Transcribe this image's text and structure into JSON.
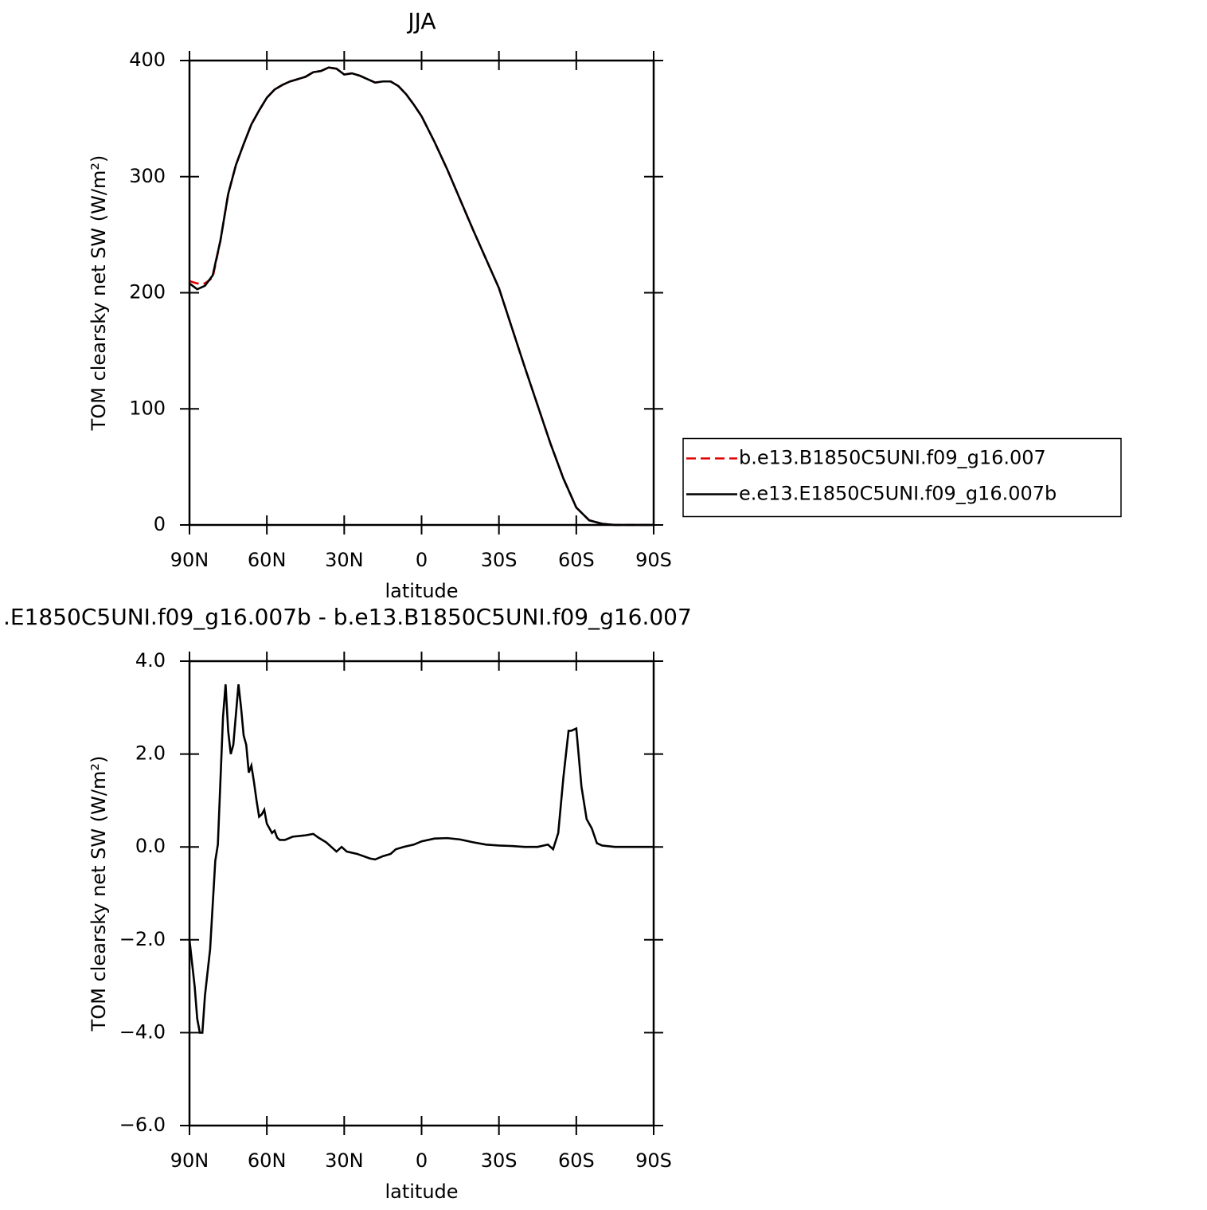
{
  "chart_data": [
    {
      "type": "line",
      "title": "JJA",
      "xlabel": "latitude",
      "ylabel": "TOM clearsky net SW (W/m²)",
      "x": [
        90,
        87,
        84,
        81,
        78,
        75,
        72,
        69,
        66,
        63,
        60,
        57,
        54,
        51,
        48,
        45,
        42,
        39,
        36,
        33,
        30,
        27,
        24,
        21,
        18,
        15,
        12,
        9,
        6,
        3,
        0,
        -5,
        -10,
        -15,
        -20,
        -25,
        -30,
        -35,
        -40,
        -45,
        -50,
        -55,
        -60,
        -65,
        -70,
        -75,
        -80,
        -85,
        -90
      ],
      "series": [
        {
          "name": "b.e13.B1850C5UNI.f09_g16.007",
          "color": "#e00000",
          "linestyle": "dashed",
          "values": [
            210,
            208,
            208,
            213,
            245,
            285,
            310,
            328,
            345,
            357,
            368,
            375,
            379,
            382,
            384,
            386,
            390,
            391,
            394,
            393,
            388,
            389,
            387,
            384,
            381,
            382,
            382,
            378,
            371,
            362,
            352,
            330,
            306,
            280,
            254,
            229,
            204,
            170,
            136,
            103,
            70,
            40,
            15,
            4,
            1,
            0,
            0,
            0,
            0
          ]
        },
        {
          "name": "e.e13.E1850C5UNI.f09_g16.007b",
          "color": "#000000",
          "linestyle": "solid",
          "values": [
            208,
            203,
            206,
            215,
            245,
            285,
            310,
            328,
            345,
            357,
            368,
            375,
            379,
            382,
            384,
            386,
            390,
            391,
            394,
            393,
            388,
            389,
            387,
            384,
            381,
            382,
            382,
            378,
            371,
            362,
            352,
            330,
            306,
            280,
            254,
            229,
            204,
            170,
            136,
            103,
            70,
            40,
            15,
            4,
            1,
            0,
            0,
            0,
            0
          ]
        }
      ],
      "xlim": [
        90,
        -90
      ],
      "xticks": [
        {
          "value": 90,
          "label": "90N"
        },
        {
          "value": 60,
          "label": "60N"
        },
        {
          "value": 30,
          "label": "30N"
        },
        0,
        {
          "value": -30,
          "label": "30S"
        },
        {
          "value": -60,
          "label": "60S"
        },
        {
          "value": -90,
          "label": "90S"
        }
      ],
      "ylim": [
        0,
        400
      ],
      "yticks": [
        0,
        100,
        200,
        300,
        400
      ],
      "legend": "right"
    },
    {
      "type": "line",
      "title": ".E1850C5UNI.f09_g16.007b - b.e13.B1850C5UNI.f09_g16.007",
      "xlabel": "latitude",
      "ylabel": "TOM clearsky net SW (W/m²)",
      "x": [
        90,
        88,
        87,
        86,
        85,
        84,
        82,
        80,
        79,
        77,
        76,
        75,
        74,
        73,
        71,
        70,
        69,
        68,
        67,
        66,
        65,
        64,
        63,
        62,
        61,
        60,
        59,
        58,
        57,
        56,
        55,
        53,
        50,
        45,
        42,
        40,
        37,
        35,
        33,
        31,
        29,
        25,
        20,
        18,
        15,
        12,
        10,
        7,
        3,
        0,
        -5,
        -10,
        -15,
        -20,
        -25,
        -30,
        -35,
        -40,
        -45,
        -49,
        -51,
        -53,
        -55,
        -57,
        -58,
        -60,
        -62,
        -64,
        -66,
        -68,
        -70,
        -75,
        -80,
        -90
      ],
      "series": [
        {
          "color": "#000000",
          "linestyle": "solid",
          "values": [
            -2.0,
            -3.0,
            -3.7,
            -4.0,
            -4.0,
            -3.2,
            -2.2,
            -0.3,
            0.05,
            2.8,
            3.5,
            2.5,
            2.0,
            2.2,
            3.5,
            3.0,
            2.4,
            2.2,
            1.6,
            1.75,
            1.4,
            1.0,
            0.65,
            0.7,
            0.8,
            0.5,
            0.4,
            0.3,
            0.35,
            0.2,
            0.15,
            0.15,
            0.22,
            0.25,
            0.28,
            0.2,
            0.1,
            0.0,
            -0.1,
            0.0,
            -0.1,
            -0.15,
            -0.25,
            -0.27,
            -0.2,
            -0.15,
            -0.05,
            0.0,
            0.05,
            0.12,
            0.18,
            0.19,
            0.16,
            0.1,
            0.05,
            0.03,
            0.02,
            0.0,
            0.0,
            0.05,
            -0.05,
            0.3,
            1.5,
            2.5,
            2.5,
            2.55,
            1.3,
            0.6,
            0.4,
            0.08,
            0.03,
            0.0,
            0.0,
            0.0
          ]
        }
      ],
      "xlim": [
        90,
        -90
      ],
      "xticks": [
        {
          "value": 90,
          "label": "90N"
        },
        {
          "value": 60,
          "label": "60N"
        },
        {
          "value": 30,
          "label": "30N"
        },
        0,
        {
          "value": -30,
          "label": "30S"
        },
        {
          "value": -60,
          "label": "60S"
        },
        {
          "value": -90,
          "label": "90S"
        }
      ],
      "ylim": [
        -6,
        4
      ],
      "yticks": [
        {
          "value": -6,
          "label": "−6.0"
        },
        {
          "value": -4,
          "label": "−4.0"
        },
        {
          "value": -2,
          "label": "−2.0"
        },
        {
          "value": 0,
          "label": "0.0"
        },
        {
          "value": 2,
          "label": "2.0"
        },
        {
          "value": 4,
          "label": "4.0"
        }
      ]
    }
  ]
}
